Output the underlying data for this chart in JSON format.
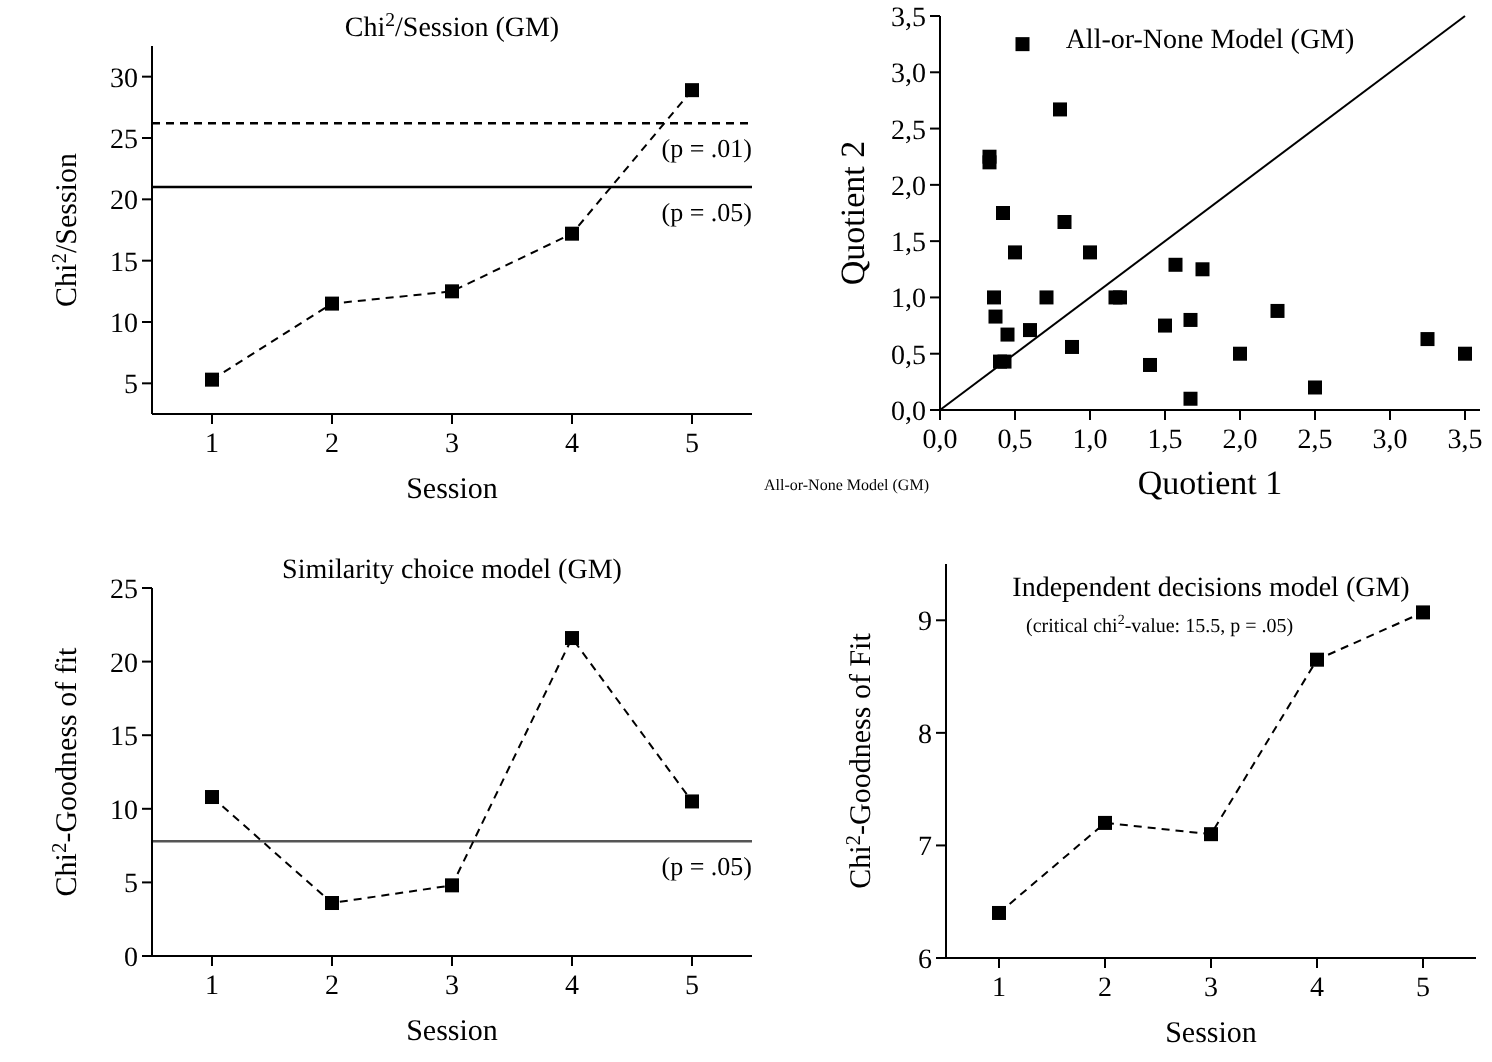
{
  "chart_data": [
    {
      "type": "line",
      "title": "Chi$^{2}$/Session (GM)",
      "xlabel": "Session",
      "ylabel": "Chi$^{2}$/Session",
      "x": [
        1,
        2,
        3,
        4,
        5
      ],
      "xlim": [
        0.5,
        5.5
      ],
      "xticks": [
        1,
        2,
        3,
        4,
        5
      ],
      "ylim": [
        2.5,
        32.5
      ],
      "yticks": [
        5,
        10,
        15,
        20,
        25,
        30
      ],
      "marker": "square",
      "line_style": "dashed",
      "grid": false,
      "series": [
        {
          "color": "#000000",
          "values": [
            5.3,
            11.5,
            12.5,
            17.2,
            28.9
          ]
        }
      ],
      "ref_lines": [
        {
          "axis": "y",
          "value": 26.2,
          "label": "(p = .01)",
          "line_style": "dashed",
          "color": "#000000"
        },
        {
          "axis": "y",
          "value": 21,
          "label": "(p = .05)",
          "line_style": "solid",
          "color": "#000000"
        }
      ]
    },
    {
      "type": "scatter",
      "title": "All-or-None Model  (GM)",
      "xlabel": "Quotient 1",
      "ylabel": "Quotient 2",
      "xlim": [
        0,
        3.6
      ],
      "ylim": [
        0,
        3.5
      ],
      "xticks": [
        {
          "value": 0,
          "label": "0,0"
        },
        {
          "value": 0.5,
          "label": "0,5"
        },
        {
          "value": 1,
          "label": "1,0"
        },
        {
          "value": 1.5,
          "label": "1,5"
        },
        {
          "value": 2,
          "label": "2,0"
        },
        {
          "value": 2.5,
          "label": "2,5"
        },
        {
          "value": 3,
          "label": "3,0"
        },
        {
          "value": 3.5,
          "label": "3,5"
        }
      ],
      "yticks": [
        {
          "value": 0,
          "label": "0,0"
        },
        {
          "value": 0.5,
          "label": "0,5"
        },
        {
          "value": 1,
          "label": "1,0"
        },
        {
          "value": 1.5,
          "label": "1,5"
        },
        {
          "value": 2,
          "label": "2,0"
        },
        {
          "value": 2.5,
          "label": "2,5"
        },
        {
          "value": 3,
          "label": "3,0"
        },
        {
          "value": 3.5,
          "label": "3,5"
        }
      ],
      "marker": "square",
      "grid": false,
      "annotations": [
        "All-or-None Model (GM)"
      ],
      "series": [
        {
          "color": "#000000",
          "x": [
            0.33,
            0.33,
            0.55,
            0.8,
            0.42,
            0.83,
            0.5,
            1.0,
            0.36,
            0.37,
            0.45,
            0.6,
            0.71,
            0.4,
            0.43,
            0.88,
            1.17,
            1.2,
            1.57,
            1.75,
            1.5,
            1.67,
            1.4,
            1.67,
            2.0,
            2.25,
            2.5,
            3.25,
            3.5
          ],
          "values": [
            2.25,
            2.2,
            3.25,
            2.67,
            1.75,
            1.67,
            1.4,
            1.4,
            1.0,
            0.83,
            0.67,
            0.71,
            1.0,
            0.43,
            0.43,
            0.56,
            1.0,
            1.0,
            1.29,
            1.25,
            0.75,
            0.8,
            0.4,
            0.1,
            0.5,
            0.88,
            0.2,
            0.63,
            0.5
          ]
        },
        {
          "type": "line",
          "color": "#000000",
          "x": [
            0,
            3.5
          ],
          "values": [
            0,
            3.5
          ],
          "marker": "none",
          "line_style": "solid"
        }
      ]
    },
    {
      "type": "line",
      "title": "Similarity choice model (GM)",
      "xlabel": "Session",
      "ylabel": "Chi$^{2}$-Goodness of fit",
      "x": [
        1,
        2,
        3,
        4,
        5
      ],
      "xlim": [
        0.5,
        5.5
      ],
      "xticks": [
        1,
        2,
        3,
        4,
        5
      ],
      "ylim": [
        0,
        25
      ],
      "yticks": [
        0,
        5,
        10,
        15,
        20,
        25
      ],
      "marker": "square",
      "line_style": "dashed",
      "grid": false,
      "series": [
        {
          "color": "#000000",
          "values": [
            10.8,
            3.6,
            4.8,
            21.6,
            10.5
          ]
        }
      ],
      "ref_lines": [
        {
          "axis": "y",
          "value": 7.8,
          "label": "(p = .05)",
          "line_style": "solid",
          "color": "#555555"
        }
      ]
    },
    {
      "type": "line",
      "title": "Independent decisions model  (GM)",
      "xlabel": "Session",
      "ylabel": "Chi$^{2}$-Goodness of Fit",
      "x": [
        1,
        2,
        3,
        4,
        5
      ],
      "xlim": [
        0.5,
        5.5
      ],
      "xticks": [
        1,
        2,
        3,
        4,
        5
      ],
      "ylim": [
        6,
        9.5
      ],
      "yticks": [
        6,
        7,
        8,
        9
      ],
      "marker": "square",
      "line_style": "dashed",
      "grid": false,
      "annotations": [
        "(critical chi$^{2}$-value: 15.5, p = .05)"
      ],
      "series": [
        {
          "color": "#000000",
          "values": [
            6.4,
            7.2,
            7.1,
            8.65,
            9.07
          ]
        }
      ]
    }
  ]
}
